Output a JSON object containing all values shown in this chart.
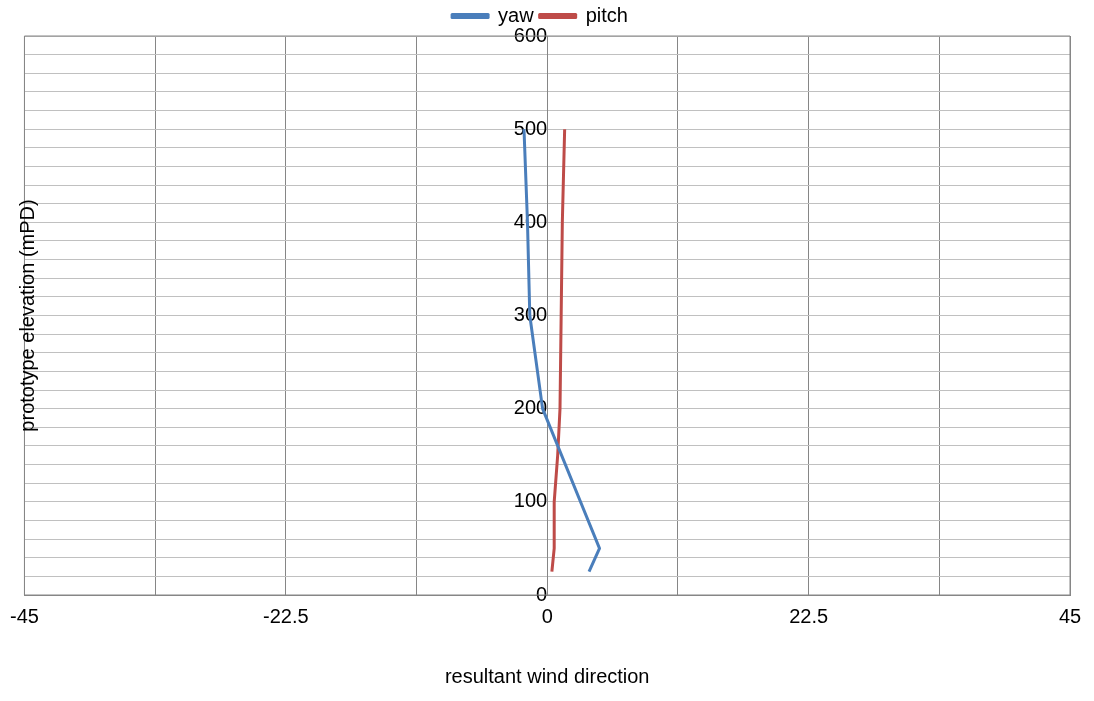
{
  "chart_data": {
    "type": "line",
    "xlabel": "resultant wind direction",
    "ylabel": "prototype elevation (mPD)",
    "xlim": [
      -45,
      45
    ],
    "xticks": [
      -45,
      {
        "value": -33.75,
        "label": null
      },
      -22.5,
      {
        "value": -11.25,
        "label": null
      },
      0,
      {
        "value": 11.25,
        "label": null
      },
      22.5,
      {
        "value": 33.75,
        "label": null
      },
      45
    ],
    "ylim": [
      0,
      600
    ],
    "yticks": [
      0,
      {
        "value": 20,
        "label": null
      },
      {
        "value": 40,
        "label": null
      },
      {
        "value": 60,
        "label": null
      },
      {
        "value": 80,
        "label": null
      },
      100,
      {
        "value": 120,
        "label": null
      },
      {
        "value": 140,
        "label": null
      },
      {
        "value": 160,
        "label": null
      },
      {
        "value": 180,
        "label": null
      },
      200,
      {
        "value": 220,
        "label": null
      },
      {
        "value": 240,
        "label": null
      },
      {
        "value": 260,
        "label": null
      },
      {
        "value": 280,
        "label": null
      },
      300,
      {
        "value": 320,
        "label": null
      },
      {
        "value": 340,
        "label": null
      },
      {
        "value": 360,
        "label": null
      },
      {
        "value": 380,
        "label": null
      },
      400,
      {
        "value": 420,
        "label": null
      },
      {
        "value": 440,
        "label": null
      },
      {
        "value": 460,
        "label": null
      },
      {
        "value": 480,
        "label": null
      },
      500,
      {
        "value": 520,
        "label": null
      },
      {
        "value": 540,
        "label": null
      },
      {
        "value": 560,
        "label": null
      },
      {
        "value": 580,
        "label": null
      },
      600
    ],
    "grid": true,
    "legend": "top",
    "marker": "none",
    "line_style": "solid",
    "series": [
      {
        "name": "yaw",
        "color": "#4a7ebb",
        "x": [
          3.6,
          4.5,
          -0.4,
          -1.5,
          -1.7,
          -2.0
        ],
        "values": [
          25,
          50,
          200,
          300,
          400,
          500
        ]
      },
      {
        "name": "pitch",
        "color": "#be4b48",
        "x": [
          0.4,
          0.6,
          0.6,
          0.9,
          1.1,
          1.2,
          1.3,
          1.5
        ],
        "values": [
          25,
          50,
          100,
          150,
          200,
          300,
          400,
          500
        ]
      }
    ]
  }
}
